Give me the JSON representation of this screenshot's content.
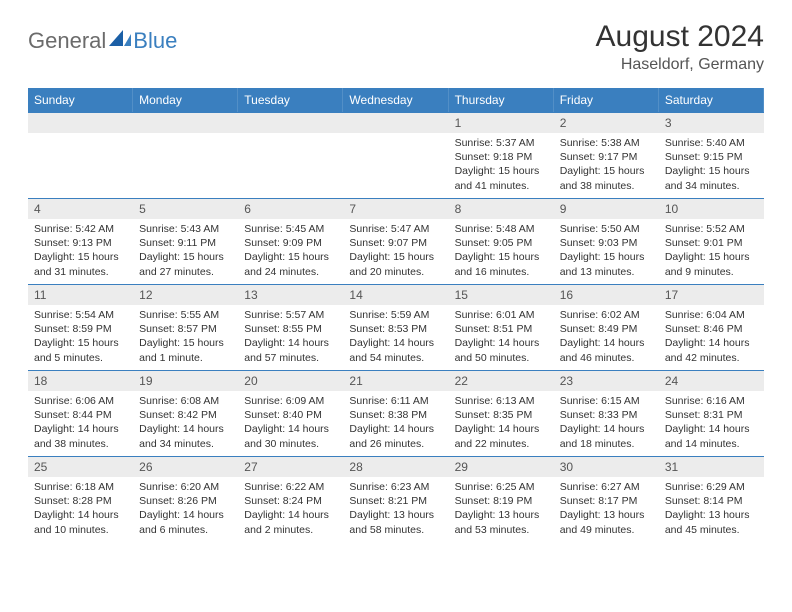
{
  "logo": {
    "general": "General",
    "blue": "Blue"
  },
  "title": "August 2024",
  "subtitle": "Haseldorf, Germany",
  "colors": {
    "header_bg": "#3a7fbf",
    "header_text": "#ffffff",
    "daynum_bg": "#ececec",
    "border": "#3a7fbf",
    "logo_gray": "#6b6b6b",
    "logo_blue": "#3a7fbf"
  },
  "days_of_week": [
    "Sunday",
    "Monday",
    "Tuesday",
    "Wednesday",
    "Thursday",
    "Friday",
    "Saturday"
  ],
  "cells": [
    {
      "day": "",
      "sunrise": "",
      "sunset": "",
      "daylight": ""
    },
    {
      "day": "",
      "sunrise": "",
      "sunset": "",
      "daylight": ""
    },
    {
      "day": "",
      "sunrise": "",
      "sunset": "",
      "daylight": ""
    },
    {
      "day": "",
      "sunrise": "",
      "sunset": "",
      "daylight": ""
    },
    {
      "day": "1",
      "sunrise": "Sunrise: 5:37 AM",
      "sunset": "Sunset: 9:18 PM",
      "daylight": "Daylight: 15 hours and 41 minutes."
    },
    {
      "day": "2",
      "sunrise": "Sunrise: 5:38 AM",
      "sunset": "Sunset: 9:17 PM",
      "daylight": "Daylight: 15 hours and 38 minutes."
    },
    {
      "day": "3",
      "sunrise": "Sunrise: 5:40 AM",
      "sunset": "Sunset: 9:15 PM",
      "daylight": "Daylight: 15 hours and 34 minutes."
    },
    {
      "day": "4",
      "sunrise": "Sunrise: 5:42 AM",
      "sunset": "Sunset: 9:13 PM",
      "daylight": "Daylight: 15 hours and 31 minutes."
    },
    {
      "day": "5",
      "sunrise": "Sunrise: 5:43 AM",
      "sunset": "Sunset: 9:11 PM",
      "daylight": "Daylight: 15 hours and 27 minutes."
    },
    {
      "day": "6",
      "sunrise": "Sunrise: 5:45 AM",
      "sunset": "Sunset: 9:09 PM",
      "daylight": "Daylight: 15 hours and 24 minutes."
    },
    {
      "day": "7",
      "sunrise": "Sunrise: 5:47 AM",
      "sunset": "Sunset: 9:07 PM",
      "daylight": "Daylight: 15 hours and 20 minutes."
    },
    {
      "day": "8",
      "sunrise": "Sunrise: 5:48 AM",
      "sunset": "Sunset: 9:05 PM",
      "daylight": "Daylight: 15 hours and 16 minutes."
    },
    {
      "day": "9",
      "sunrise": "Sunrise: 5:50 AM",
      "sunset": "Sunset: 9:03 PM",
      "daylight": "Daylight: 15 hours and 13 minutes."
    },
    {
      "day": "10",
      "sunrise": "Sunrise: 5:52 AM",
      "sunset": "Sunset: 9:01 PM",
      "daylight": "Daylight: 15 hours and 9 minutes."
    },
    {
      "day": "11",
      "sunrise": "Sunrise: 5:54 AM",
      "sunset": "Sunset: 8:59 PM",
      "daylight": "Daylight: 15 hours and 5 minutes."
    },
    {
      "day": "12",
      "sunrise": "Sunrise: 5:55 AM",
      "sunset": "Sunset: 8:57 PM",
      "daylight": "Daylight: 15 hours and 1 minute."
    },
    {
      "day": "13",
      "sunrise": "Sunrise: 5:57 AM",
      "sunset": "Sunset: 8:55 PM",
      "daylight": "Daylight: 14 hours and 57 minutes."
    },
    {
      "day": "14",
      "sunrise": "Sunrise: 5:59 AM",
      "sunset": "Sunset: 8:53 PM",
      "daylight": "Daylight: 14 hours and 54 minutes."
    },
    {
      "day": "15",
      "sunrise": "Sunrise: 6:01 AM",
      "sunset": "Sunset: 8:51 PM",
      "daylight": "Daylight: 14 hours and 50 minutes."
    },
    {
      "day": "16",
      "sunrise": "Sunrise: 6:02 AM",
      "sunset": "Sunset: 8:49 PM",
      "daylight": "Daylight: 14 hours and 46 minutes."
    },
    {
      "day": "17",
      "sunrise": "Sunrise: 6:04 AM",
      "sunset": "Sunset: 8:46 PM",
      "daylight": "Daylight: 14 hours and 42 minutes."
    },
    {
      "day": "18",
      "sunrise": "Sunrise: 6:06 AM",
      "sunset": "Sunset: 8:44 PM",
      "daylight": "Daylight: 14 hours and 38 minutes."
    },
    {
      "day": "19",
      "sunrise": "Sunrise: 6:08 AM",
      "sunset": "Sunset: 8:42 PM",
      "daylight": "Daylight: 14 hours and 34 minutes."
    },
    {
      "day": "20",
      "sunrise": "Sunrise: 6:09 AM",
      "sunset": "Sunset: 8:40 PM",
      "daylight": "Daylight: 14 hours and 30 minutes."
    },
    {
      "day": "21",
      "sunrise": "Sunrise: 6:11 AM",
      "sunset": "Sunset: 8:38 PM",
      "daylight": "Daylight: 14 hours and 26 minutes."
    },
    {
      "day": "22",
      "sunrise": "Sunrise: 6:13 AM",
      "sunset": "Sunset: 8:35 PM",
      "daylight": "Daylight: 14 hours and 22 minutes."
    },
    {
      "day": "23",
      "sunrise": "Sunrise: 6:15 AM",
      "sunset": "Sunset: 8:33 PM",
      "daylight": "Daylight: 14 hours and 18 minutes."
    },
    {
      "day": "24",
      "sunrise": "Sunrise: 6:16 AM",
      "sunset": "Sunset: 8:31 PM",
      "daylight": "Daylight: 14 hours and 14 minutes."
    },
    {
      "day": "25",
      "sunrise": "Sunrise: 6:18 AM",
      "sunset": "Sunset: 8:28 PM",
      "daylight": "Daylight: 14 hours and 10 minutes."
    },
    {
      "day": "26",
      "sunrise": "Sunrise: 6:20 AM",
      "sunset": "Sunset: 8:26 PM",
      "daylight": "Daylight: 14 hours and 6 minutes."
    },
    {
      "day": "27",
      "sunrise": "Sunrise: 6:22 AM",
      "sunset": "Sunset: 8:24 PM",
      "daylight": "Daylight: 14 hours and 2 minutes."
    },
    {
      "day": "28",
      "sunrise": "Sunrise: 6:23 AM",
      "sunset": "Sunset: 8:21 PM",
      "daylight": "Daylight: 13 hours and 58 minutes."
    },
    {
      "day": "29",
      "sunrise": "Sunrise: 6:25 AM",
      "sunset": "Sunset: 8:19 PM",
      "daylight": "Daylight: 13 hours and 53 minutes."
    },
    {
      "day": "30",
      "sunrise": "Sunrise: 6:27 AM",
      "sunset": "Sunset: 8:17 PM",
      "daylight": "Daylight: 13 hours and 49 minutes."
    },
    {
      "day": "31",
      "sunrise": "Sunrise: 6:29 AM",
      "sunset": "Sunset: 8:14 PM",
      "daylight": "Daylight: 13 hours and 45 minutes."
    }
  ]
}
